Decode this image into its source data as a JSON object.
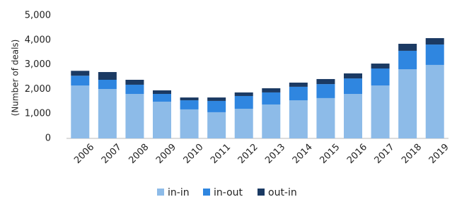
{
  "chart_data": {
    "type": "stacked_bar",
    "y_label": "(Number of deals)",
    "categories": [
      "2006",
      "2007",
      "2008",
      "2009",
      "2010",
      "2011",
      "2012",
      "2013",
      "2014",
      "2015",
      "2016",
      "2017",
      "2018",
      "2019"
    ],
    "series": [
      {
        "name": "in-in",
        "color": "#8dbbe8",
        "values": [
          2150,
          2010,
          1810,
          1495,
          1180,
          1065,
          1205,
          1380,
          1550,
          1640,
          1810,
          2155,
          2815,
          2990
        ]
      },
      {
        "name": "in-out",
        "color": "#2f86e0",
        "values": [
          400,
          375,
          375,
          315,
          370,
          460,
          520,
          490,
          550,
          570,
          630,
          690,
          750,
          830
        ]
      },
      {
        "name": "out-in",
        "color": "#1b3a63",
        "values": [
          200,
          315,
          200,
          145,
          115,
          140,
          145,
          170,
          170,
          205,
          205,
          200,
          285,
          260
        ]
      }
    ],
    "ylim": [
      0,
      5000
    ],
    "yticks": [
      0,
      {
        "value": 1000,
        "label": "1,000"
      },
      {
        "value": 2000,
        "label": "2,000"
      },
      {
        "value": 3000,
        "label": "3,000"
      },
      {
        "value": 4000,
        "label": "4,000"
      },
      {
        "value": 5000,
        "label": "5,000"
      }
    ],
    "legend": "bottom"
  }
}
